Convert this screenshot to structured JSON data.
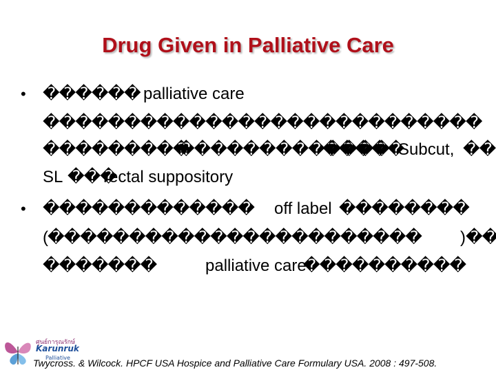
{
  "slide": {
    "title": "Drug Given in Palliative Care",
    "bullet_symbol": "•",
    "lines": [
      {
        "bullet": true,
        "segs": [
          "������",
          "palliative care"
        ]
      },
      {
        "bullet": false,
        "segs": [
          "���������������������������"
        ]
      },
      {
        "bullet": false,
        "segs": [
          "���������",
          "������",
          "�������",
          "�����",
          "Subcut,",
          "��"
        ]
      },
      {
        "bullet": false,
        "segs": [
          "SL",
          "���",
          "rectal suppository"
        ]
      },
      {
        "bullet": true,
        "segs": [
          "�������������",
          "off label",
          "��������"
        ]
      },
      {
        "bullet": false,
        "segs": [
          "(�����������������������",
          ")",
          "��"
        ]
      },
      {
        "bullet": false,
        "segs": [
          "�������",
          "palliative care",
          "����������"
        ]
      }
    ]
  },
  "logo": {
    "line1": "ศูนย์การุณรักษ์",
    "line2": "Karunruk",
    "line3": "Palliative"
  },
  "citation": "Twycross. & Wilcock. HPCF USA Hospice and Palliative Care Formulary USA. 2008 : 497-508."
}
